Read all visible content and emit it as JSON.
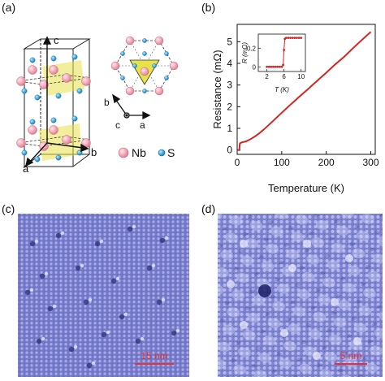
{
  "panels": {
    "a": "(a)",
    "b": "(b)",
    "c": "(c)",
    "d": "(d)"
  },
  "crystal": {
    "axis_a": "a",
    "axis_b": "b",
    "axis_c": "c",
    "legend_nb": "Nb",
    "legend_s": "S",
    "top_axis_b": "b",
    "top_axis_c": "c",
    "top_axis_a": "a"
  },
  "colors": {
    "nb": "#f2a3b3",
    "s": "#3aa7dc",
    "triangle": "#e8e24a",
    "curve": "#d4251f",
    "stm": "#6f74c6",
    "scale": "#e3323a"
  },
  "chart_data": {
    "type": "line",
    "xlabel": "Temperature (K)",
    "ylabel": "Resistance (mΩ)",
    "xlim": [
      0,
      310
    ],
    "ylim": [
      -0.2,
      5.8
    ],
    "xticks": [
      "0",
      "100",
      "200",
      "300"
    ],
    "yticks": [
      "0",
      "1",
      "2",
      "3",
      "4",
      "5"
    ],
    "series": [
      {
        "x": [
          2,
          5,
          5.5,
          6,
          8,
          10,
          20,
          30,
          40,
          50,
          60,
          80,
          100,
          120,
          140,
          160,
          180,
          200,
          220,
          240,
          260,
          280,
          300
        ],
        "y": [
          0,
          0,
          0.2,
          0.3,
          0.33,
          0.35,
          0.4,
          0.5,
          0.63,
          0.78,
          0.95,
          1.33,
          1.72,
          2.1,
          2.47,
          2.83,
          3.2,
          3.57,
          3.95,
          4.3,
          4.7,
          5.08,
          5.45
        ]
      }
    ],
    "inset": {
      "xlabel": "T (K)",
      "ylabel": "R (mΩ)",
      "xlim": [
        0,
        11
      ],
      "ylim": [
        -0.05,
        0.35
      ],
      "xticks": [
        "2",
        "6",
        "10"
      ],
      "yticks": [
        "0",
        "0.2"
      ],
      "series": [
        {
          "x": [
            2.0,
            2.5,
            3.0,
            3.5,
            4.0,
            4.5,
            5.0,
            5.5,
            5.8,
            6.0,
            6.2,
            6.5,
            7.0,
            7.5,
            8.0,
            8.5,
            9.0,
            9.5,
            10.0
          ],
          "y": [
            0,
            0,
            0,
            0,
            0,
            0,
            0,
            0,
            0.02,
            0.18,
            0.3,
            0.31,
            0.31,
            0.31,
            0.31,
            0.31,
            0.31,
            0.31,
            0.31
          ]
        }
      ]
    }
  },
  "stm": {
    "scale_c": "15 nm",
    "scale_d": "5 nm"
  }
}
